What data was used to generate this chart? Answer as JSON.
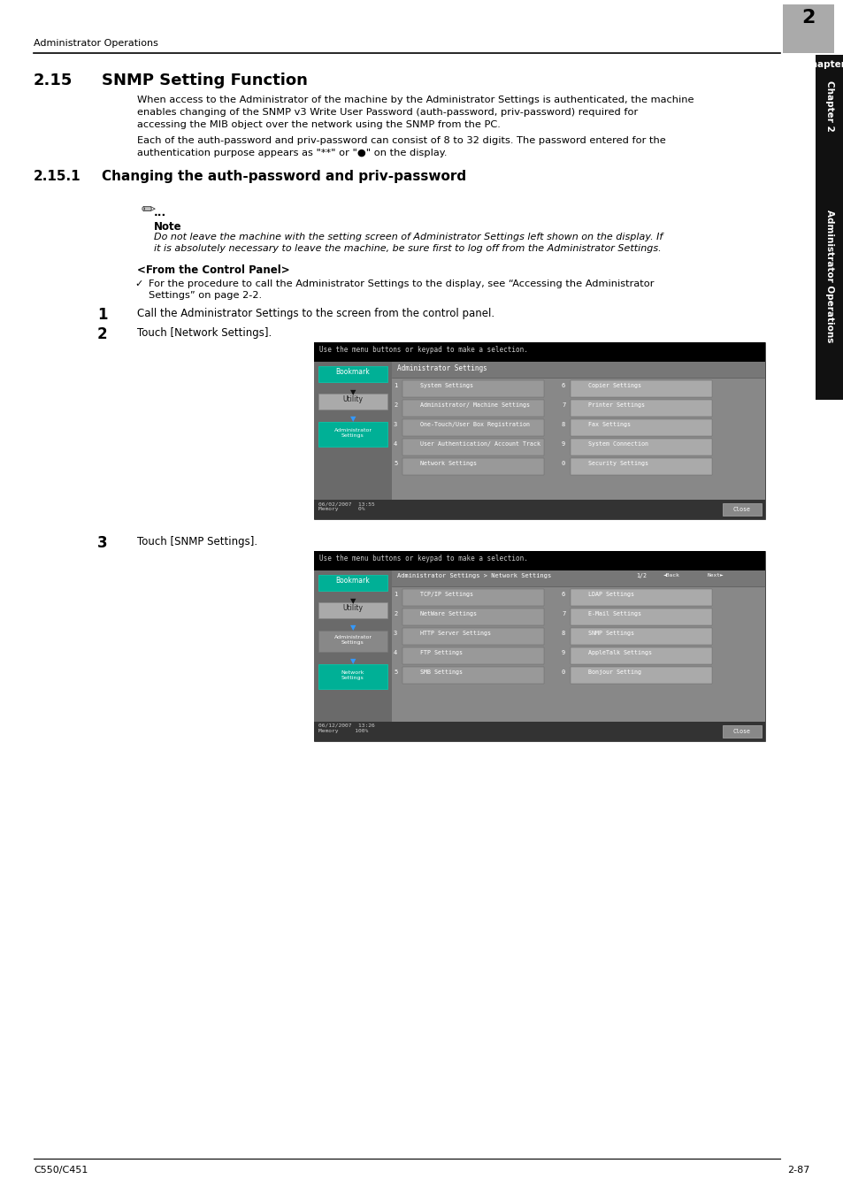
{
  "page_bg": "#ffffff",
  "header_text": "Administrator Operations",
  "header_num": "2",
  "footer_left": "C550/C451",
  "footer_right": "2-87",
  "section_num": "2.15",
  "section_title": "SNMP Setting Function",
  "para1_lines": [
    "When access to the Administrator of the machine by the Administrator Settings is authenticated, the machine",
    "enables changing of the SNMP v3 Write User Password (auth-password, priv-password) required for",
    "accessing the MIB object over the network using the SNMP from the PC."
  ],
  "para2_lines": [
    "Each of the auth-password and priv-password can consist of 8 to 32 digits. The password entered for the",
    "authentication purpose appears as \"**\" or \"●\" on the display."
  ],
  "subsection_num": "2.15.1",
  "subsection_title": "Changing the auth-password and priv-password",
  "note_label": "Note",
  "note_lines": [
    "Do not leave the machine with the setting screen of Administrator Settings left shown on the display. If",
    "it is absolutely necessary to leave the machine, be sure first to log off from the Administrator Settings."
  ],
  "from_panel": "<From the Control Panel>",
  "check_lines": [
    "For the procedure to call the Administrator Settings to the display, see “Accessing the Administrator",
    "Settings” on page 2-2."
  ],
  "step1": "Call the Administrator Settings to the screen from the control panel.",
  "step2": "Touch [Network Settings].",
  "step3": "Touch [SNMP Settings].",
  "screen1_top_text": "Use the menu buttons or keypad to make a selection.",
  "screen1_header": "Administrator Settings",
  "screen1_left": [
    "System Settings",
    "Administrator/\nMachine Settings",
    "One-Touch/User Box\nRegistration",
    "User Authentication/\nAccount Track",
    "Network Settings"
  ],
  "screen1_right": [
    "Copier Settings",
    "Printer Settings",
    "Fax Settings",
    "System Connection",
    "Security Settings"
  ],
  "screen1_left_nums": [
    "1",
    "2",
    "3",
    "4",
    "5"
  ],
  "screen1_right_nums": [
    "6",
    "7",
    "8",
    "9",
    "0"
  ],
  "screen1_status": "06/02/2007  13:55\nMemory      0%",
  "screen2_top_text": "Use the menu buttons or keypad to make a selection.",
  "screen2_header": "Administrator Settings > Network Settings",
  "screen2_nav": "1/2",
  "screen2_left": [
    "TCP/IP Settings",
    "NetWare Settings",
    "HTTP Server Settings",
    "FTP Settings",
    "SMB Settings"
  ],
  "screen2_right": [
    "LDAP Settings",
    "E-Mail Settings",
    "SNMP Settings",
    "AppleTalk Settings",
    "Bonjour Setting"
  ],
  "screen2_left_nums": [
    "1",
    "2",
    "3",
    "4",
    "5"
  ],
  "screen2_right_nums": [
    "6",
    "7",
    "8",
    "9",
    "0"
  ],
  "screen2_status": "06/12/2007  13:26\nMemory     100%",
  "sidebar_chapter": "Chapter 2",
  "sidebar_ops": "Administrator Operations",
  "tab_black": "#000000",
  "tab_gray": "#6d6d6d",
  "green_btn": "#00a896",
  "gray_btn": "#888888",
  "dark_screen_bg": "#1a1a1a",
  "screen_bg": "#5a5a5a",
  "screen_mid": "#808080",
  "btn_gray": "#b0b0b0",
  "btn_dark": "#666666"
}
